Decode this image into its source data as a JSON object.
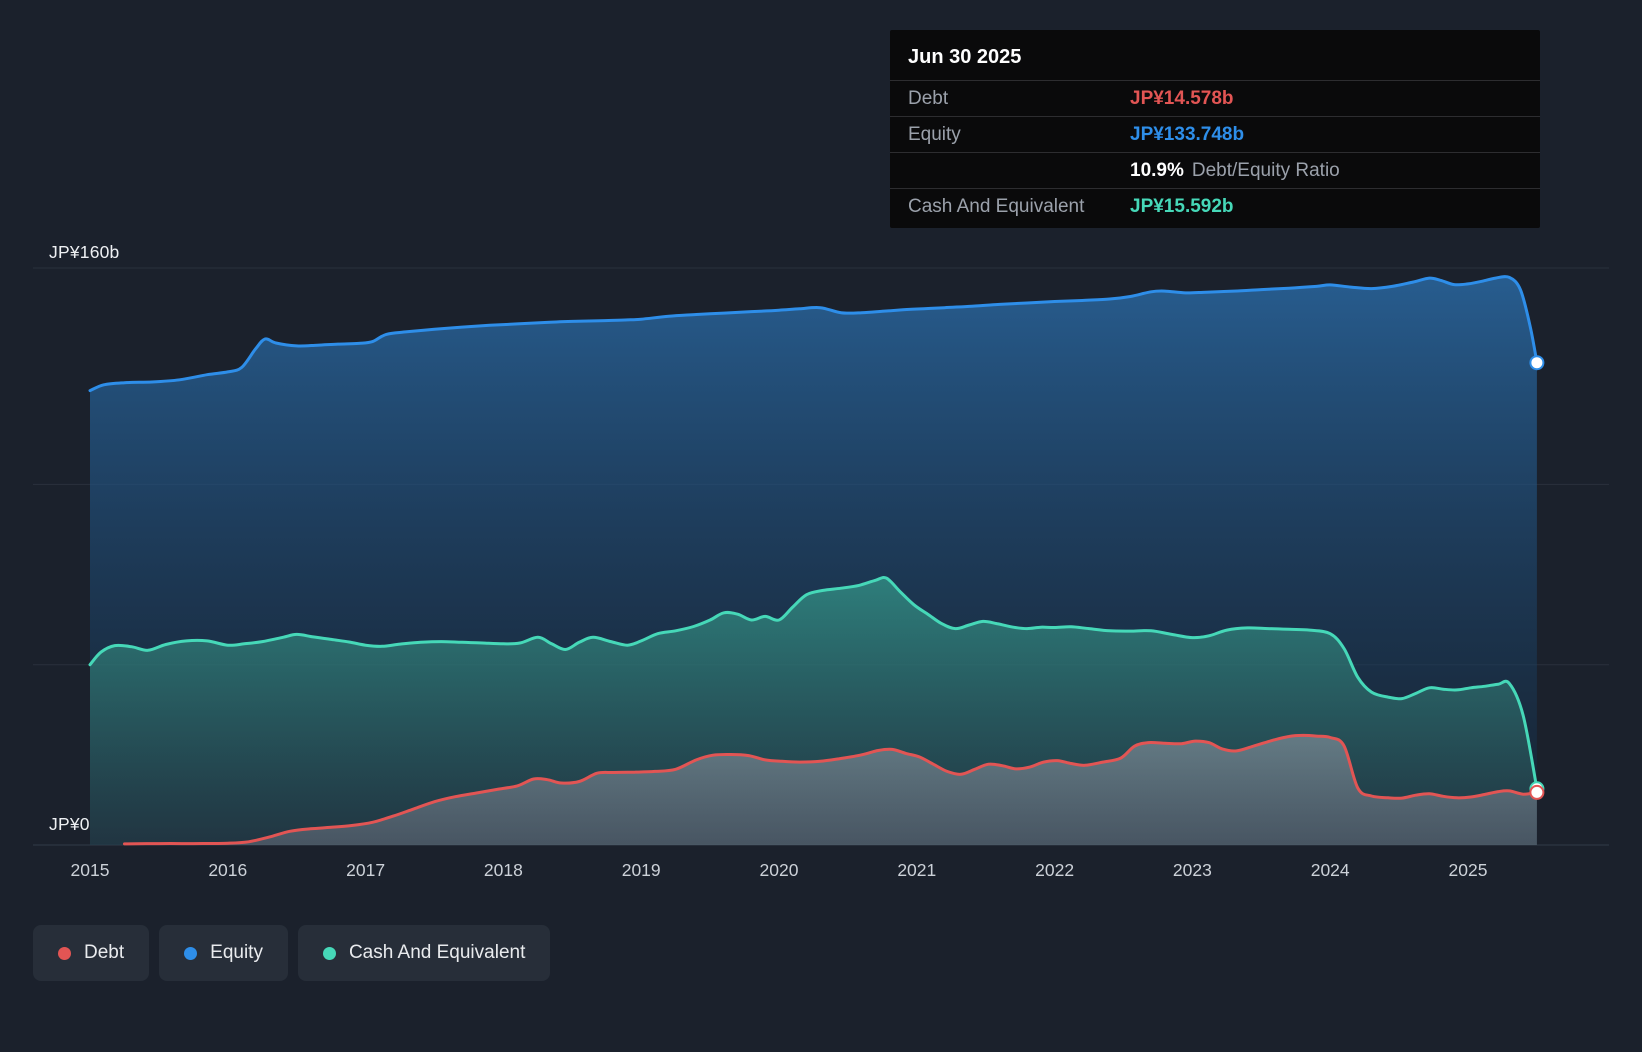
{
  "colors": {
    "background": "#1b212c",
    "debt": "#e25554",
    "equity": "#2e8ee9",
    "cash": "#46d8b8",
    "grid": "#2a313d",
    "axis_line": "#323a47",
    "tooltip_bg": "#0a0a0b",
    "tooltip_divider": "#2d2d30",
    "label_gray": "#9ba1ab",
    "text": "#e9ebee",
    "tick_text": "#ccd1d8",
    "legend_bg": "#272e39"
  },
  "tooltip": {
    "date": "Jun 30 2025",
    "debt_label": "Debt",
    "debt_value": "JP¥14.578b",
    "equity_label": "Equity",
    "equity_value": "JP¥133.748b",
    "ratio_value": "10.9%",
    "ratio_label": "Debt/Equity Ratio",
    "cash_label": "Cash And Equivalent",
    "cash_value": "JP¥15.592b"
  },
  "y_axis": {
    "top_label": "JP¥160b",
    "bottom_label": "JP¥0"
  },
  "x_ticks": [
    "2015",
    "2016",
    "2017",
    "2018",
    "2019",
    "2020",
    "2021",
    "2022",
    "2023",
    "2024",
    "2025"
  ],
  "legend": [
    {
      "label": "Debt",
      "color_key": "debt"
    },
    {
      "label": "Equity",
      "color_key": "equity"
    },
    {
      "label": "Cash And Equivalent",
      "color_key": "cash"
    }
  ],
  "chart_data": {
    "type": "area",
    "title": "",
    "xlabel": "",
    "ylabel": "",
    "currency_prefix": "JP¥",
    "value_unit": "billions",
    "x_range": [
      2015,
      2025.5
    ],
    "ylim": [
      0,
      160
    ],
    "y_tick_labels": [
      "JP¥0",
      "JP¥160b"
    ],
    "grid_values": [
      0,
      50,
      100,
      160
    ],
    "grid": true,
    "legend_position": "bottom-left",
    "latest": {
      "date": "Jun 30 2025",
      "debt": 14.578,
      "equity": 133.748,
      "cash": 15.592,
      "debt_equity_ratio_pct": 10.9
    },
    "series": [
      {
        "name": "Equity",
        "color_key": "equity",
        "points": [
          [
            2015.0,
            126
          ],
          [
            2015.1,
            127.6
          ],
          [
            2015.25,
            128.2
          ],
          [
            2015.45,
            128.4
          ],
          [
            2015.65,
            129
          ],
          [
            2015.85,
            130.4
          ],
          [
            2016.0,
            131.2
          ],
          [
            2016.1,
            132.4
          ],
          [
            2016.2,
            137.5
          ],
          [
            2016.27,
            140.3
          ],
          [
            2016.35,
            139.2
          ],
          [
            2016.5,
            138.4
          ],
          [
            2016.65,
            138.6
          ],
          [
            2016.8,
            138.9
          ],
          [
            2016.95,
            139.1
          ],
          [
            2017.05,
            139.6
          ],
          [
            2017.15,
            141.6
          ],
          [
            2017.3,
            142.3
          ],
          [
            2017.5,
            143
          ],
          [
            2017.7,
            143.6
          ],
          [
            2017.9,
            144.1
          ],
          [
            2018.1,
            144.5
          ],
          [
            2018.3,
            144.9
          ],
          [
            2018.5,
            145.2
          ],
          [
            2018.7,
            145.4
          ],
          [
            2018.9,
            145.6
          ],
          [
            2019.0,
            145.8
          ],
          [
            2019.2,
            146.6
          ],
          [
            2019.4,
            147.1
          ],
          [
            2019.6,
            147.5
          ],
          [
            2019.8,
            147.9
          ],
          [
            2020.0,
            148.3
          ],
          [
            2020.15,
            148.7
          ],
          [
            2020.3,
            149
          ],
          [
            2020.45,
            147.6
          ],
          [
            2020.6,
            147.6
          ],
          [
            2020.75,
            148
          ],
          [
            2020.9,
            148.4
          ],
          [
            2021.05,
            148.7
          ],
          [
            2021.2,
            149
          ],
          [
            2021.4,
            149.4
          ],
          [
            2021.6,
            149.9
          ],
          [
            2021.8,
            150.3
          ],
          [
            2022.0,
            150.7
          ],
          [
            2022.2,
            151
          ],
          [
            2022.4,
            151.4
          ],
          [
            2022.55,
            152.1
          ],
          [
            2022.7,
            153.4
          ],
          [
            2022.8,
            153.6
          ],
          [
            2022.95,
            153.1
          ],
          [
            2023.1,
            153.3
          ],
          [
            2023.3,
            153.6
          ],
          [
            2023.5,
            154
          ],
          [
            2023.7,
            154.4
          ],
          [
            2023.9,
            154.9
          ],
          [
            2024.0,
            155.3
          ],
          [
            2024.15,
            154.7
          ],
          [
            2024.3,
            154.3
          ],
          [
            2024.45,
            154.9
          ],
          [
            2024.6,
            156.1
          ],
          [
            2024.72,
            157.2
          ],
          [
            2024.8,
            156.6
          ],
          [
            2024.9,
            155.4
          ],
          [
            2025.0,
            155.6
          ],
          [
            2025.1,
            156.3
          ],
          [
            2025.2,
            157.2
          ],
          [
            2025.3,
            157.4
          ],
          [
            2025.38,
            154
          ],
          [
            2025.45,
            144
          ],
          [
            2025.5,
            133.748
          ]
        ]
      },
      {
        "name": "Cash And Equivalent",
        "color_key": "cash",
        "points": [
          [
            2015.0,
            50
          ],
          [
            2015.08,
            53.5
          ],
          [
            2015.18,
            55.3
          ],
          [
            2015.3,
            55
          ],
          [
            2015.42,
            54
          ],
          [
            2015.55,
            55.6
          ],
          [
            2015.7,
            56.6
          ],
          [
            2015.85,
            56.6
          ],
          [
            2016.0,
            55.4
          ],
          [
            2016.12,
            55.8
          ],
          [
            2016.25,
            56.4
          ],
          [
            2016.4,
            57.6
          ],
          [
            2016.5,
            58.4
          ],
          [
            2016.62,
            57.7
          ],
          [
            2016.75,
            57
          ],
          [
            2016.88,
            56.3
          ],
          [
            2017.0,
            55.4
          ],
          [
            2017.12,
            55.1
          ],
          [
            2017.25,
            55.7
          ],
          [
            2017.4,
            56.2
          ],
          [
            2017.55,
            56.4
          ],
          [
            2017.7,
            56.2
          ],
          [
            2017.85,
            56
          ],
          [
            2018.0,
            55.8
          ],
          [
            2018.12,
            56
          ],
          [
            2018.25,
            57.6
          ],
          [
            2018.35,
            55.8
          ],
          [
            2018.45,
            54.2
          ],
          [
            2018.55,
            56.2
          ],
          [
            2018.65,
            57.6
          ],
          [
            2018.78,
            56.4
          ],
          [
            2018.9,
            55.4
          ],
          [
            2019.0,
            56.6
          ],
          [
            2019.12,
            58.6
          ],
          [
            2019.25,
            59.4
          ],
          [
            2019.38,
            60.6
          ],
          [
            2019.5,
            62.4
          ],
          [
            2019.6,
            64.4
          ],
          [
            2019.7,
            64
          ],
          [
            2019.8,
            62.4
          ],
          [
            2019.9,
            63.4
          ],
          [
            2020.0,
            62.4
          ],
          [
            2020.1,
            66
          ],
          [
            2020.2,
            69.4
          ],
          [
            2020.32,
            70.6
          ],
          [
            2020.45,
            71.2
          ],
          [
            2020.58,
            72
          ],
          [
            2020.7,
            73.4
          ],
          [
            2020.78,
            74
          ],
          [
            2020.88,
            70.2
          ],
          [
            2020.98,
            66.6
          ],
          [
            2021.08,
            64
          ],
          [
            2021.18,
            61.4
          ],
          [
            2021.28,
            60
          ],
          [
            2021.38,
            61
          ],
          [
            2021.48,
            62
          ],
          [
            2021.58,
            61.4
          ],
          [
            2021.7,
            60.4
          ],
          [
            2021.8,
            60
          ],
          [
            2021.9,
            60.4
          ],
          [
            2022.0,
            60.3
          ],
          [
            2022.12,
            60.5
          ],
          [
            2022.25,
            60
          ],
          [
            2022.4,
            59.4
          ],
          [
            2022.55,
            59.3
          ],
          [
            2022.7,
            59.4
          ],
          [
            2022.85,
            58.4
          ],
          [
            2023.0,
            57.5
          ],
          [
            2023.12,
            58
          ],
          [
            2023.25,
            59.6
          ],
          [
            2023.4,
            60.2
          ],
          [
            2023.55,
            60
          ],
          [
            2023.7,
            59.8
          ],
          [
            2023.85,
            59.6
          ],
          [
            2024.0,
            58.6
          ],
          [
            2024.1,
            54.5
          ],
          [
            2024.2,
            46.5
          ],
          [
            2024.3,
            42.4
          ],
          [
            2024.42,
            41
          ],
          [
            2024.52,
            40.6
          ],
          [
            2024.62,
            42
          ],
          [
            2024.72,
            43.6
          ],
          [
            2024.82,
            43.2
          ],
          [
            2024.92,
            43
          ],
          [
            2025.02,
            43.6
          ],
          [
            2025.12,
            44
          ],
          [
            2025.22,
            44.6
          ],
          [
            2025.3,
            44.8
          ],
          [
            2025.4,
            36
          ],
          [
            2025.5,
            15.592
          ]
        ]
      },
      {
        "name": "Debt",
        "color_key": "debt",
        "points": [
          [
            2015.25,
            0.3
          ],
          [
            2015.5,
            0.4
          ],
          [
            2015.75,
            0.4
          ],
          [
            2016.0,
            0.5
          ],
          [
            2016.15,
            0.9
          ],
          [
            2016.3,
            2.2
          ],
          [
            2016.45,
            3.8
          ],
          [
            2016.6,
            4.5
          ],
          [
            2016.75,
            4.9
          ],
          [
            2016.9,
            5.4
          ],
          [
            2017.05,
            6.3
          ],
          [
            2017.2,
            8
          ],
          [
            2017.35,
            10
          ],
          [
            2017.5,
            12
          ],
          [
            2017.65,
            13.4
          ],
          [
            2017.8,
            14.4
          ],
          [
            2017.95,
            15.4
          ],
          [
            2018.1,
            16.4
          ],
          [
            2018.22,
            18.3
          ],
          [
            2018.32,
            18.1
          ],
          [
            2018.42,
            17.2
          ],
          [
            2018.55,
            17.6
          ],
          [
            2018.68,
            19.9
          ],
          [
            2018.8,
            20.1
          ],
          [
            2018.95,
            20.2
          ],
          [
            2019.1,
            20.4
          ],
          [
            2019.25,
            21
          ],
          [
            2019.4,
            23.6
          ],
          [
            2019.52,
            24.9
          ],
          [
            2019.65,
            25.1
          ],
          [
            2019.78,
            24.8
          ],
          [
            2019.9,
            23.6
          ],
          [
            2020.02,
            23.2
          ],
          [
            2020.15,
            23
          ],
          [
            2020.3,
            23.2
          ],
          [
            2020.45,
            24
          ],
          [
            2020.6,
            25
          ],
          [
            2020.72,
            26.2
          ],
          [
            2020.82,
            26.5
          ],
          [
            2020.92,
            25.4
          ],
          [
            2021.02,
            24.4
          ],
          [
            2021.12,
            22.4
          ],
          [
            2021.22,
            20.4
          ],
          [
            2021.32,
            19.6
          ],
          [
            2021.42,
            21
          ],
          [
            2021.52,
            22.4
          ],
          [
            2021.62,
            22
          ],
          [
            2021.72,
            21.1
          ],
          [
            2021.82,
            21.6
          ],
          [
            2021.92,
            23
          ],
          [
            2022.02,
            23.4
          ],
          [
            2022.12,
            22.6
          ],
          [
            2022.22,
            22.1
          ],
          [
            2022.35,
            23
          ],
          [
            2022.48,
            24.1
          ],
          [
            2022.58,
            27.4
          ],
          [
            2022.68,
            28.4
          ],
          [
            2022.8,
            28.2
          ],
          [
            2022.92,
            28.1
          ],
          [
            2023.02,
            28.8
          ],
          [
            2023.12,
            28.4
          ],
          [
            2023.22,
            26.6
          ],
          [
            2023.32,
            26.1
          ],
          [
            2023.45,
            27.5
          ],
          [
            2023.58,
            29
          ],
          [
            2023.7,
            30.1
          ],
          [
            2023.8,
            30.4
          ],
          [
            2023.9,
            30.2
          ],
          [
            2024.0,
            29.8
          ],
          [
            2024.1,
            27.5
          ],
          [
            2024.2,
            15.8
          ],
          [
            2024.3,
            13.6
          ],
          [
            2024.42,
            13.1
          ],
          [
            2024.52,
            13
          ],
          [
            2024.62,
            13.8
          ],
          [
            2024.72,
            14.2
          ],
          [
            2024.82,
            13.5
          ],
          [
            2024.92,
            13.1
          ],
          [
            2025.02,
            13.3
          ],
          [
            2025.12,
            14
          ],
          [
            2025.22,
            14.8
          ],
          [
            2025.3,
            15
          ],
          [
            2025.4,
            14.1
          ],
          [
            2025.5,
            14.578
          ]
        ]
      }
    ]
  }
}
